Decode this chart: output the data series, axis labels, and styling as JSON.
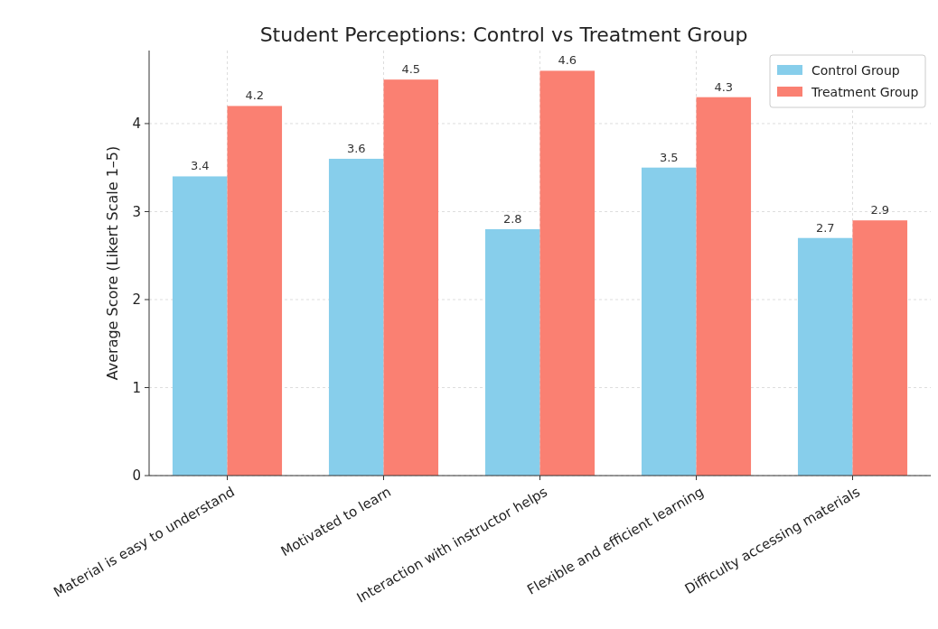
{
  "chart_data": {
    "type": "bar",
    "title": "Student Perceptions: Control vs Treatment Group",
    "ylabel": "Average Score (Likert Scale 1–5)",
    "categories": [
      "Material is easy to understand",
      "Motivated to learn",
      "Interaction with instructor helps",
      "Flexible and efficient learning",
      "Difficulty accessing materials"
    ],
    "series": [
      {
        "name": "Control Group",
        "color": "#87ceeb",
        "values": [
          3.4,
          3.6,
          2.8,
          3.5,
          2.7
        ]
      },
      {
        "name": "Treatment Group",
        "color": "#fa8072",
        "values": [
          4.2,
          4.5,
          4.6,
          4.3,
          2.9
        ]
      }
    ],
    "ylim": [
      0,
      4.83
    ],
    "yticks": [
      0,
      1,
      2,
      3,
      4
    ],
    "grid": true,
    "legend": "top right",
    "data_labels": true
  }
}
